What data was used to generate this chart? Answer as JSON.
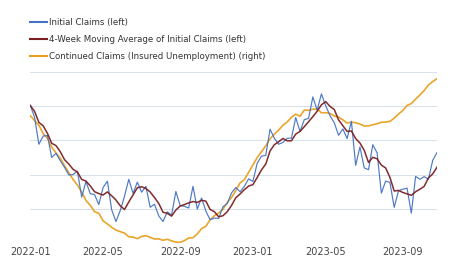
{
  "legend": [
    {
      "label": "Initial Claims (left)",
      "color": "#4472C4"
    },
    {
      "label": "4-Week Moving Average of Initial Claims (left)",
      "color": "#7B2020"
    },
    {
      "label": "Continued Claims (Insured Unemployment) (right)",
      "color": "#E8A020"
    }
  ],
  "x_tick_labels": [
    "2022-01",
    "2022-05",
    "2022-09",
    "2023-01",
    "2023-05",
    "2023-09"
  ],
  "tick_positions": [
    0,
    17,
    35,
    52,
    69,
    87
  ],
  "header_color": "#E0E8F0",
  "plot_bg_color": "#FFFFFF",
  "grid_color": "#C8D4E0",
  "legend_fontsize": 6.2,
  "tick_fontsize": 7,
  "n_points": 96
}
